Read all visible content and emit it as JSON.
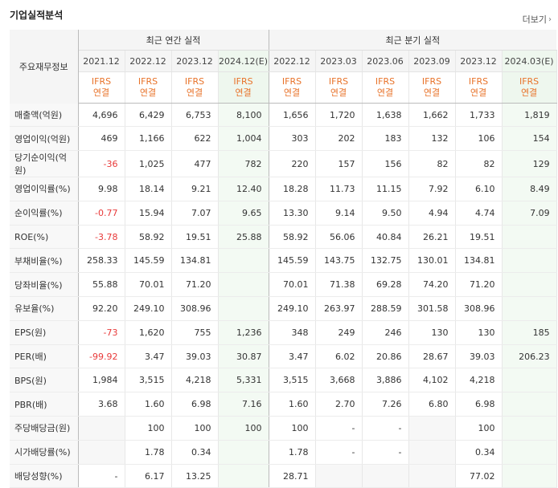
{
  "page": {
    "title": "기업실적분석",
    "more_label": "더보기"
  },
  "table": {
    "row_header": "주요재무정보",
    "group_annual": "최근 연간 실적",
    "group_quarter": "최근 분기 실적",
    "periods": [
      "2021.12",
      "2022.12",
      "2023.12",
      "2024.12(E)",
      "2022.12",
      "2023.03",
      "2023.06",
      "2023.09",
      "2023.12",
      "2024.03(E)"
    ],
    "std_line1": "IFRS",
    "std_line2": "연결",
    "rows": [
      {
        "label": "매출액(억원)",
        "values": [
          "4,696",
          "6,429",
          "6,753",
          "8,100",
          "1,656",
          "1,720",
          "1,638",
          "1,662",
          "1,733",
          "1,819"
        ]
      },
      {
        "label": "영업이익(억원)",
        "values": [
          "469",
          "1,166",
          "622",
          "1,004",
          "303",
          "202",
          "183",
          "132",
          "106",
          "154"
        ]
      },
      {
        "label": "당기순이익(억원)",
        "values": [
          "-36",
          "1,025",
          "477",
          "782",
          "220",
          "157",
          "156",
          "82",
          "82",
          "129"
        ]
      },
      {
        "label": "영업이익률(%)",
        "values": [
          "9.98",
          "18.14",
          "9.21",
          "12.40",
          "18.28",
          "11.73",
          "11.15",
          "7.92",
          "6.10",
          "8.49"
        ]
      },
      {
        "label": "순이익률(%)",
        "values": [
          "-0.77",
          "15.94",
          "7.07",
          "9.65",
          "13.30",
          "9.14",
          "9.50",
          "4.94",
          "4.74",
          "7.09"
        ]
      },
      {
        "label": "ROE(%)",
        "values": [
          "-3.78",
          "58.92",
          "19.51",
          "25.88",
          "58.92",
          "56.06",
          "40.84",
          "26.21",
          "19.51",
          ""
        ]
      },
      {
        "label": "부채비율(%)",
        "values": [
          "258.33",
          "145.59",
          "134.81",
          "",
          "145.59",
          "143.75",
          "132.75",
          "130.01",
          "134.81",
          ""
        ]
      },
      {
        "label": "당좌비율(%)",
        "values": [
          "55.88",
          "70.01",
          "71.20",
          "",
          "70.01",
          "71.38",
          "69.28",
          "74.20",
          "71.20",
          ""
        ]
      },
      {
        "label": "유보율(%)",
        "values": [
          "92.20",
          "249.10",
          "308.96",
          "",
          "249.10",
          "263.97",
          "288.59",
          "301.58",
          "308.96",
          ""
        ]
      },
      {
        "label": "EPS(원)",
        "values": [
          "-73",
          "1,620",
          "755",
          "1,236",
          "348",
          "249",
          "246",
          "130",
          "130",
          "185"
        ]
      },
      {
        "label": "PER(배)",
        "values": [
          "-99.92",
          "3.47",
          "39.03",
          "30.87",
          "3.47",
          "6.02",
          "20.86",
          "28.67",
          "39.03",
          "206.23"
        ]
      },
      {
        "label": "BPS(원)",
        "values": [
          "1,984",
          "3,515",
          "4,218",
          "5,331",
          "3,515",
          "3,668",
          "3,886",
          "4,102",
          "4,218",
          ""
        ]
      },
      {
        "label": "PBR(배)",
        "values": [
          "3.68",
          "1.60",
          "6.98",
          "7.16",
          "1.60",
          "2.70",
          "7.26",
          "6.80",
          "6.98",
          ""
        ]
      },
      {
        "label": "주당배당금(원)",
        "values": [
          "",
          "100",
          "100",
          "100",
          "100",
          "-",
          "-",
          "",
          "100",
          ""
        ]
      },
      {
        "label": "시가배당률(%)",
        "values": [
          "",
          "1.78",
          "0.34",
          "",
          "1.78",
          "-",
          "-",
          "",
          "0.34",
          ""
        ]
      },
      {
        "label": "배당성향(%)",
        "values": [
          "-",
          "6.17",
          "13.25",
          "",
          "28.71",
          "",
          "",
          "",
          "77.02",
          ""
        ]
      }
    ]
  }
}
